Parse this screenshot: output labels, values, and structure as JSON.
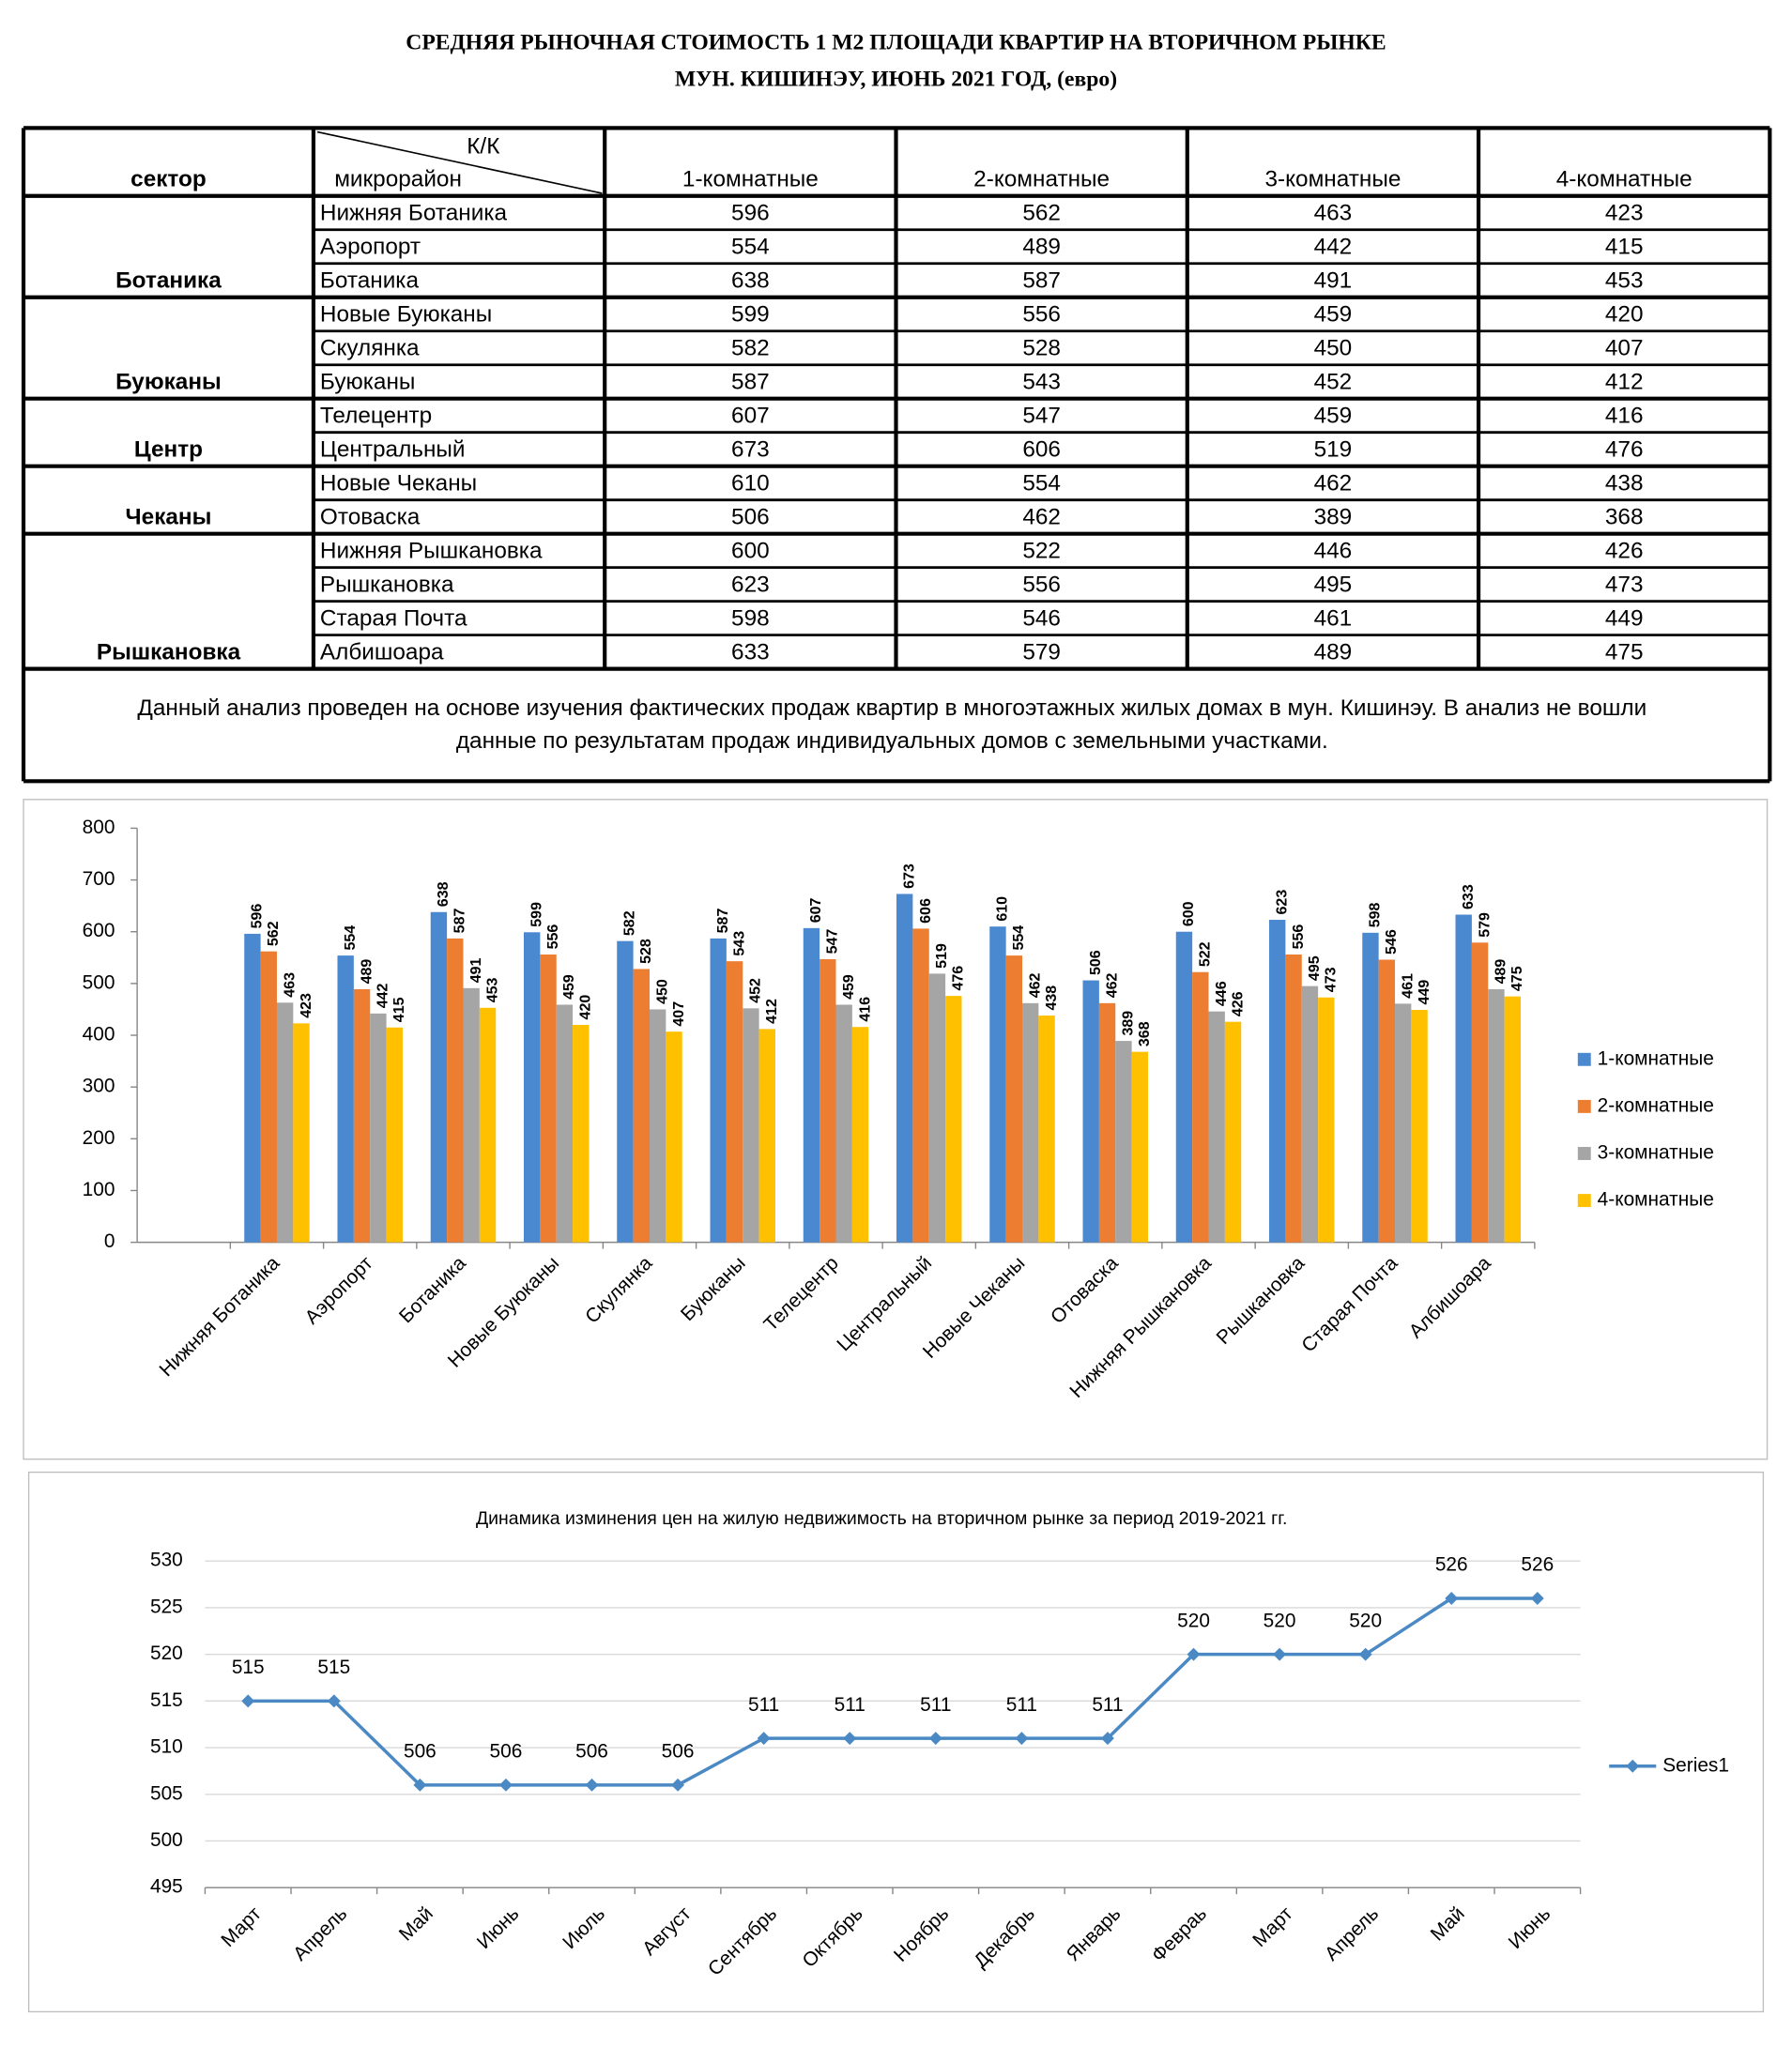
{
  "header": {
    "title": [
      "СРЕДНЯЯ  РЫНОЧНАЯ  СТОИМОСТЬ  1 М2  ПЛОЩАДИ  КВАРТИР НА ВТОРИЧНОМ РЫНКЕ",
      "МУН.  КИШИНЭУ, ИЮНЬ 2021 ГОД, (евро)"
    ]
  },
  "table": {
    "header": {
      "sector": "сектор",
      "kk": "К/К",
      "district": "микрорайон",
      "rooms": [
        "1-комнатные",
        "2-комнатные",
        "3-комнатные",
        "4-комнатные"
      ]
    },
    "groups": [
      {
        "sector": "Ботаника",
        "rows": [
          {
            "district": "Нижняя Ботаника",
            "values": [
              596,
              562,
              463,
              423
            ]
          },
          {
            "district": "Аэропорт",
            "values": [
              554,
              489,
              442,
              415
            ]
          },
          {
            "district": "Ботаника",
            "values": [
              638,
              587,
              491,
              453
            ]
          }
        ]
      },
      {
        "sector": "Буюканы",
        "rows": [
          {
            "district": "Новые Буюканы",
            "values": [
              599,
              556,
              459,
              420
            ]
          },
          {
            "district": "Скулянка",
            "values": [
              582,
              528,
              450,
              407
            ]
          },
          {
            "district": "Буюканы",
            "values": [
              587,
              543,
              452,
              412
            ]
          }
        ]
      },
      {
        "sector": "Центр",
        "rows": [
          {
            "district": "Телецентр",
            "values": [
              607,
              547,
              459,
              416
            ]
          },
          {
            "district": "Центральный",
            "values": [
              673,
              606,
              519,
              476
            ]
          }
        ]
      },
      {
        "sector": "Чеканы",
        "rows": [
          {
            "district": "Новые Чеканы",
            "values": [
              610,
              554,
              462,
              438
            ]
          },
          {
            "district": "Отоваска",
            "values": [
              506,
              462,
              389,
              368
            ]
          }
        ]
      },
      {
        "sector": "Рышкановка",
        "rows": [
          {
            "district": "Нижняя Рышкановка",
            "values": [
              600,
              522,
              446,
              426
            ]
          },
          {
            "district": "Рышкановка",
            "values": [
              623,
              556,
              495,
              473
            ]
          },
          {
            "district": "Старая Почта",
            "values": [
              598,
              546,
              461,
              449
            ]
          },
          {
            "district": "Албишоара",
            "values": [
              633,
              579,
              489,
              475
            ]
          }
        ]
      }
    ]
  },
  "note": {
    "lines": [
      "Данный анализ проведен на основе изучения фактических продаж квартир в многоэтажных жилых домах в мун. Кишинэу. В анализ не вошли",
      "данные по результатам  продаж индивидуальных домов с земельными участками."
    ]
  },
  "chart_data": [
    {
      "type": "bar",
      "categories": [
        null,
        "Нижняя Ботаника",
        "Аэропорт",
        "Ботаника",
        "Новые Буюканы",
        "Скулянка",
        "Буюканы",
        "Телецентр",
        "Центральный",
        "Новые Чеканы",
        "Отоваска",
        "Нижняя Рышкановка",
        "Рышкановка",
        "Старая Почта",
        "Албишоара"
      ],
      "series": [
        {
          "name": "1-комнатные",
          "color": "#4a88cf",
          "values": [
            null,
            596,
            554,
            638,
            599,
            582,
            587,
            607,
            673,
            610,
            506,
            600,
            623,
            598,
            633
          ]
        },
        {
          "name": "2-комнатные",
          "color": "#ed7d31",
          "values": [
            null,
            562,
            489,
            587,
            556,
            528,
            543,
            547,
            606,
            554,
            462,
            522,
            556,
            546,
            579
          ]
        },
        {
          "name": "3-комнатные",
          "color": "#a5a5a5",
          "values": [
            null,
            463,
            442,
            491,
            459,
            450,
            452,
            459,
            519,
            462,
            389,
            446,
            495,
            461,
            489
          ]
        },
        {
          "name": "4-комнатные",
          "color": "#ffc000",
          "values": [
            null,
            423,
            415,
            453,
            420,
            407,
            412,
            416,
            476,
            438,
            368,
            426,
            473,
            449,
            475
          ]
        }
      ],
      "ylim": [
        0,
        800
      ],
      "yticks": [
        0,
        100,
        200,
        300,
        400,
        500,
        600,
        700,
        800
      ],
      "grid": false,
      "legend": "right"
    },
    {
      "type": "line",
      "title": "Динамика изминения цен на жилую недвижимость на вторичном рынке за период 2019-2021 гг.",
      "categories": [
        "Март",
        "Апрель",
        "Май",
        "Июнь",
        "Июль",
        "Август",
        "Сентябрь",
        "Октябрь",
        "Ноябрь",
        "Декабрь",
        "Январь",
        "Февраь",
        "Март",
        "Апрель",
        "Май",
        "Июнь"
      ],
      "series": [
        {
          "name": "Series1",
          "color": "#4a89c4",
          "values": [
            515,
            515,
            506,
            506,
            506,
            506,
            511,
            511,
            511,
            511,
            511,
            520,
            520,
            520,
            526,
            526
          ]
        }
      ],
      "ylim": [
        495,
        530
      ],
      "yticks": [
        495,
        500,
        505,
        510,
        515,
        520,
        525,
        530
      ],
      "grid": true,
      "legend": "right"
    }
  ]
}
